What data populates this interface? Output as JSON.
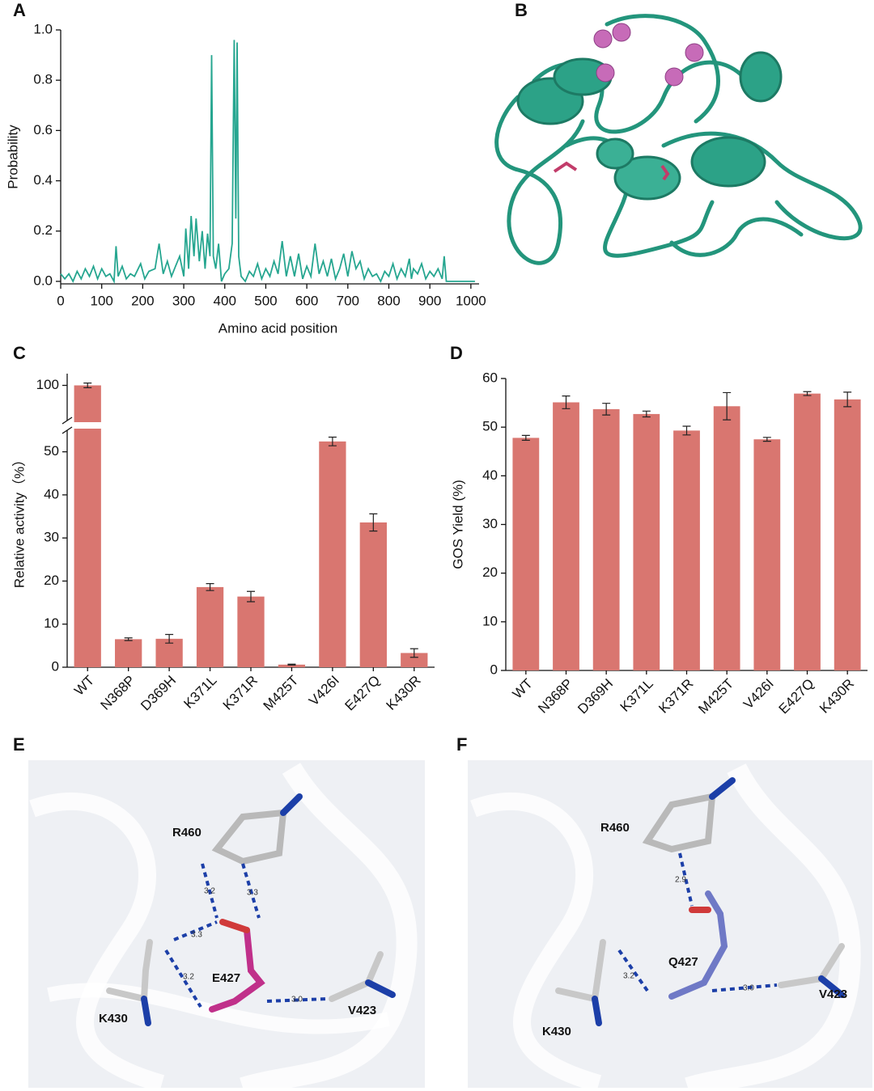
{
  "chart_data": [
    {
      "type": "line",
      "panel": "A",
      "y_label": "Probability",
      "x_label": "Amino acid position",
      "color": "#26a690",
      "x": [
        0,
        10,
        20,
        30,
        40,
        50,
        60,
        70,
        80,
        90,
        100,
        110,
        120,
        130,
        135,
        140,
        150,
        160,
        170,
        180,
        195,
        205,
        215,
        230,
        240,
        250,
        260,
        270,
        280,
        290,
        300,
        305,
        312,
        318,
        325,
        330,
        338,
        345,
        352,
        358,
        364,
        368,
        372,
        378,
        385,
        392,
        400,
        410,
        418,
        423,
        427,
        430,
        434,
        440,
        450,
        460,
        470,
        480,
        490,
        500,
        510,
        520,
        530,
        540,
        550,
        560,
        570,
        580,
        590,
        600,
        610,
        620,
        630,
        640,
        650,
        660,
        670,
        680,
        690,
        700,
        710,
        720,
        730,
        740,
        750,
        760,
        770,
        780,
        790,
        800,
        810,
        820,
        830,
        840,
        850,
        855,
        860,
        870,
        880,
        890,
        900,
        910,
        920,
        930,
        935,
        940,
        950,
        1000,
        1010
      ],
      "values": [
        0.03,
        0.01,
        0.03,
        0.0,
        0.04,
        0.01,
        0.05,
        0.02,
        0.06,
        0.01,
        0.05,
        0.02,
        0.03,
        0.0,
        0.14,
        0.02,
        0.06,
        0.01,
        0.03,
        0.02,
        0.07,
        0.01,
        0.04,
        0.05,
        0.15,
        0.03,
        0.08,
        0.02,
        0.06,
        0.1,
        0.02,
        0.21,
        0.05,
        0.26,
        0.1,
        0.25,
        0.08,
        0.2,
        0.05,
        0.19,
        0.1,
        0.9,
        0.1,
        0.05,
        0.15,
        0.0,
        0.03,
        0.05,
        0.15,
        0.96,
        0.25,
        0.95,
        0.1,
        0.02,
        0.0,
        0.04,
        0.02,
        0.07,
        0.01,
        0.05,
        0.02,
        0.08,
        0.03,
        0.16,
        0.02,
        0.1,
        0.02,
        0.11,
        0.01,
        0.06,
        0.02,
        0.15,
        0.03,
        0.08,
        0.02,
        0.09,
        0.01,
        0.05,
        0.11,
        0.02,
        0.12,
        0.05,
        0.08,
        0.01,
        0.05,
        0.02,
        0.03,
        0.0,
        0.04,
        0.02,
        0.07,
        0.01,
        0.05,
        0.02,
        0.09,
        0.01,
        0.05,
        0.03,
        0.07,
        0.01,
        0.04,
        0.02,
        0.05,
        0.01,
        0.1,
        0.0,
        0.0,
        0.0,
        0.0
      ],
      "xlim": [
        0,
        1020
      ],
      "xticks": [
        0,
        100,
        200,
        300,
        400,
        500,
        600,
        700,
        800,
        900,
        1000
      ],
      "ylim": [
        -0.01,
        1.0
      ],
      "yticks": [
        {
          "value": 0,
          "label": "0.0"
        },
        {
          "value": 0.2,
          "label": "0.2"
        },
        {
          "value": 0.4,
          "label": "0.4"
        },
        {
          "value": 0.6,
          "label": "0.6"
        },
        {
          "value": 0.8,
          "label": "0.8"
        },
        {
          "value": 1,
          "label": "1.0"
        }
      ]
    },
    {
      "type": "bar",
      "panel": "C",
      "y_label": "Relative activity（%）",
      "color": "#d97670",
      "categories": [
        "WT",
        "N368P",
        "D369H",
        "K371L",
        "K371R",
        "M425T",
        "V426I",
        "E427Q",
        "K430R"
      ],
      "values": [
        100,
        6.5,
        6.6,
        18.6,
        16.4,
        0.6,
        52.4,
        33.6,
        3.3
      ],
      "errors": [
        0.2,
        0.3,
        1.0,
        0.8,
        1.2,
        0.1,
        1.0,
        2.0,
        1.0
      ],
      "ylim": [
        0,
        101
      ],
      "axis_break": [
        55,
        97
      ],
      "yticks": [
        0,
        10,
        20,
        30,
        40,
        50,
        100
      ]
    },
    {
      "type": "bar",
      "panel": "D",
      "y_label": "GOS Yield (%)",
      "color": "#d97670",
      "categories": [
        "WT",
        "N368P",
        "D369H",
        "K371L",
        "K371R",
        "M425T",
        "V426I",
        "E427Q",
        "K430R"
      ],
      "values": [
        47.8,
        55.1,
        53.7,
        52.7,
        49.3,
        54.3,
        47.5,
        56.9,
        55.7
      ],
      "errors": [
        0.5,
        1.3,
        1.2,
        0.6,
        0.9,
        2.8,
        0.4,
        0.4,
        1.5
      ],
      "ylim": [
        0,
        60
      ],
      "yticks": [
        0,
        10,
        20,
        30,
        40,
        50,
        60
      ]
    }
  ],
  "structure_panels": [
    {
      "panel": "B"
    },
    {
      "panel": "E",
      "residues": [
        "R460",
        "E427",
        "K430",
        "V423"
      ],
      "distances": [
        "3.2",
        "3.3",
        "3.3",
        "3.2",
        "3.0"
      ]
    },
    {
      "panel": "F",
      "residues": [
        "R460",
        "Q427",
        "K430",
        "V423"
      ],
      "distances": [
        "2.9",
        "3.2",
        "3.0"
      ]
    }
  ]
}
